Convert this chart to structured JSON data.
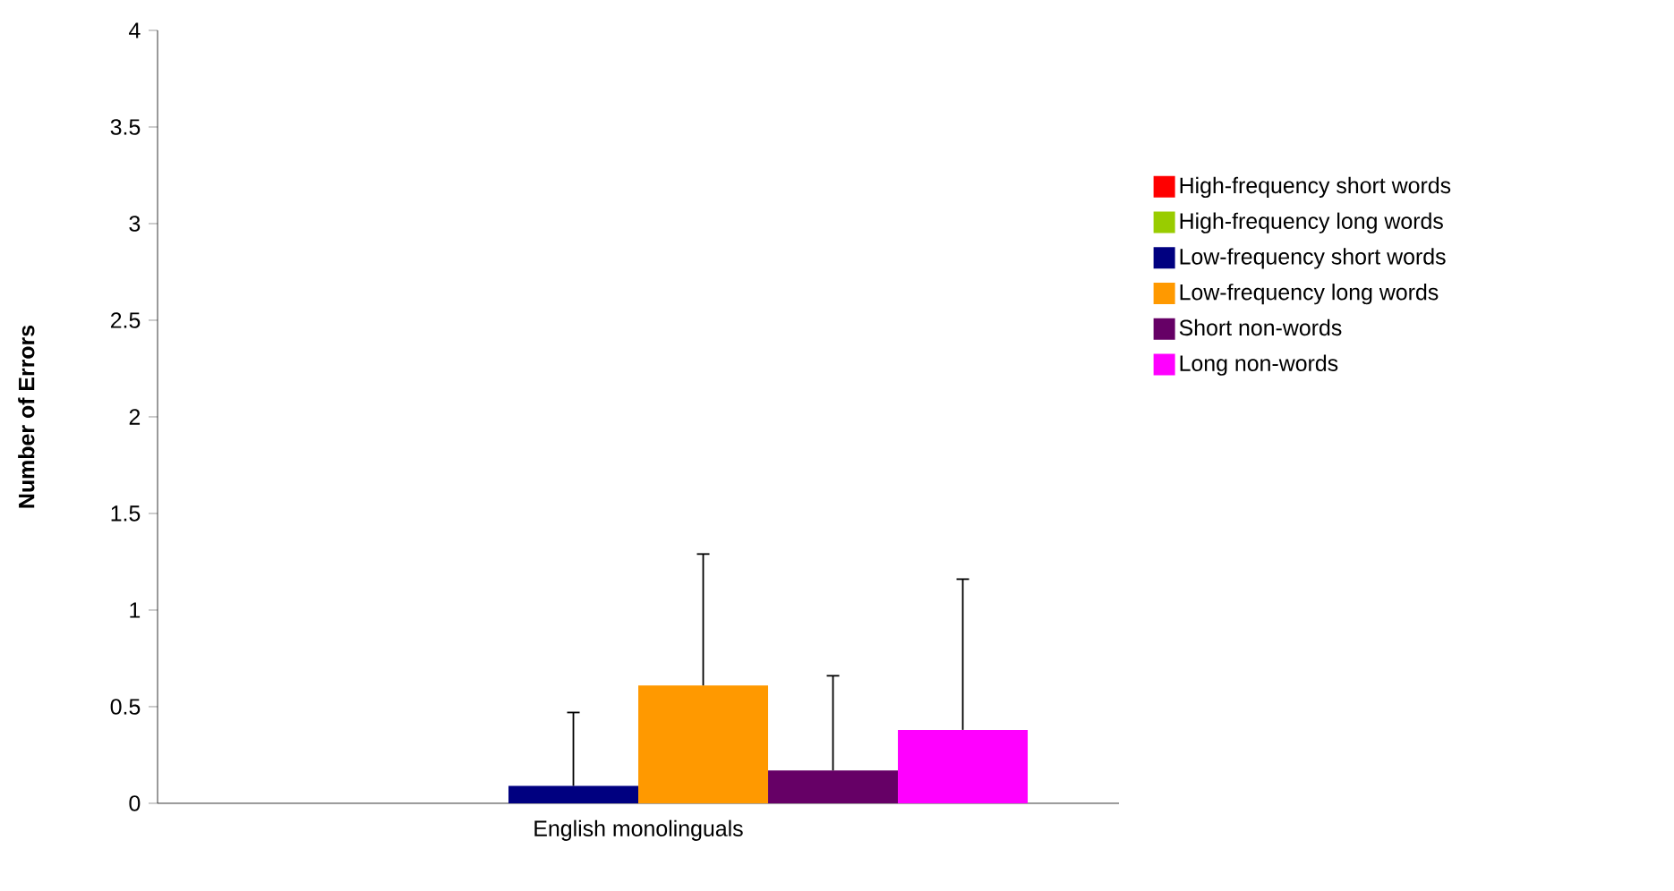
{
  "chart_data": {
    "type": "bar",
    "ylabel": "Number of Errors",
    "categories": [
      "English monolinguals"
    ],
    "ylim": [
      0,
      4
    ],
    "yticks": [
      0,
      0.5,
      1,
      1.5,
      2,
      2.5,
      3,
      3.5,
      4
    ],
    "legend": "right",
    "grid": false,
    "series": [
      {
        "name": "High-frequency short words",
        "color": "#ff0000",
        "values": [
          0
        ]
      },
      {
        "name": "High-frequency long words",
        "color": "#99cc00",
        "values": [
          0
        ]
      },
      {
        "name": "Low-frequency short words",
        "color": "#000080",
        "values": [
          0.09
        ],
        "errors": [
          [
            0.09,
            0.47
          ]
        ]
      },
      {
        "name": "Low-frequency long words",
        "color": "#ff9900",
        "values": [
          0.61
        ],
        "errors": [
          [
            0.61,
            1.29
          ]
        ]
      },
      {
        "name": "Short non-words",
        "color": "#660066",
        "values": [
          0.17
        ],
        "errors": [
          [
            0.17,
            0.66
          ]
        ]
      },
      {
        "name": "Long non-words",
        "color": "#ff00ff",
        "values": [
          0.38
        ],
        "errors": [
          [
            0.38,
            1.16
          ]
        ]
      }
    ]
  }
}
